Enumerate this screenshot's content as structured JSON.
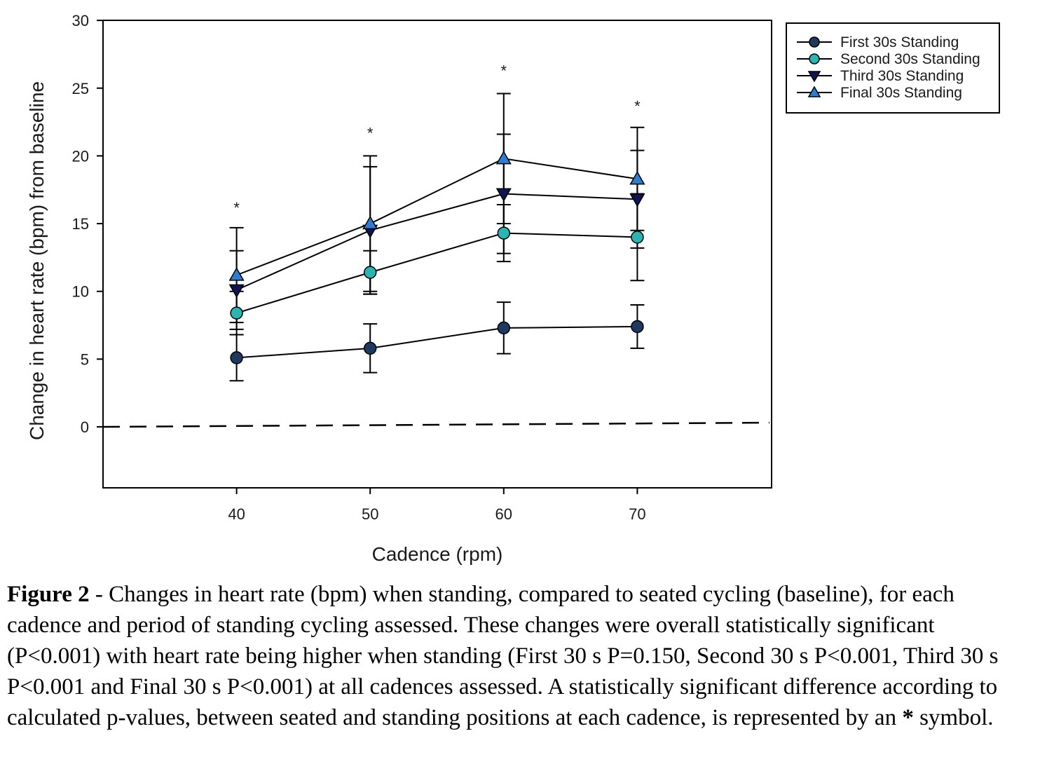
{
  "chart_data": {
    "type": "line",
    "xlabel": "Cadence (rpm)",
    "ylabel": "Change in heart rate (bpm) from baseline",
    "x": [
      40,
      50,
      60,
      70
    ],
    "xlim": [
      30,
      80
    ],
    "ylim": [
      -4.5,
      30
    ],
    "xticks": [
      "40",
      "50",
      "60",
      "70"
    ],
    "yticks": [
      "0",
      "5",
      "10",
      "15",
      "20",
      "25",
      "30"
    ],
    "baseline": 0,
    "legend_position": "top-right, outside plot",
    "significance_marker": "*",
    "significance_y": [
      16.3,
      21.8,
      26.4,
      23.8
    ],
    "series": [
      {
        "name": "First 30s Standing",
        "marker": "circle",
        "color": "#1f3a5f",
        "values": [
          5.1,
          5.8,
          7.3,
          7.4
        ],
        "errors": [
          1.7,
          1.8,
          1.9,
          1.6
        ]
      },
      {
        "name": "Second 30s Standing",
        "marker": "circle",
        "color": "#2ab5b3",
        "values": [
          8.4,
          11.4,
          14.3,
          14.0
        ],
        "errors": [
          1.6,
          1.6,
          2.1,
          3.2
        ]
      },
      {
        "name": "Third 30s Standing",
        "marker": "triangle-down",
        "color": "#101450",
        "values": [
          10.1,
          14.5,
          17.2,
          16.8
        ],
        "errors": [
          2.9,
          4.7,
          4.4,
          3.6
        ]
      },
      {
        "name": "Final 30s Standing",
        "marker": "triangle-up",
        "color": "#2e7dd1",
        "values": [
          11.2,
          15.0,
          19.8,
          18.3
        ],
        "errors": [
          3.5,
          5.0,
          4.8,
          3.8
        ]
      }
    ]
  },
  "caption": {
    "label": "Figure 2",
    "text": " - Changes in heart rate (bpm) when standing, compared to seated cycling (baseline), for each cadence and period of standing cycling assessed. These changes were overall statistically significant (P<0.001) with heart rate being higher when standing (First 30 s P=0.150, Second 30 s P<0.001, Third 30 s P<0.001 and Final 30 s P<0.001) at all cadences assessed. A statistically significant difference according to calculated p-values, between seated and standing positions at each cadence, is represented by an ",
    "symbol": "*",
    "end": " symbol."
  }
}
